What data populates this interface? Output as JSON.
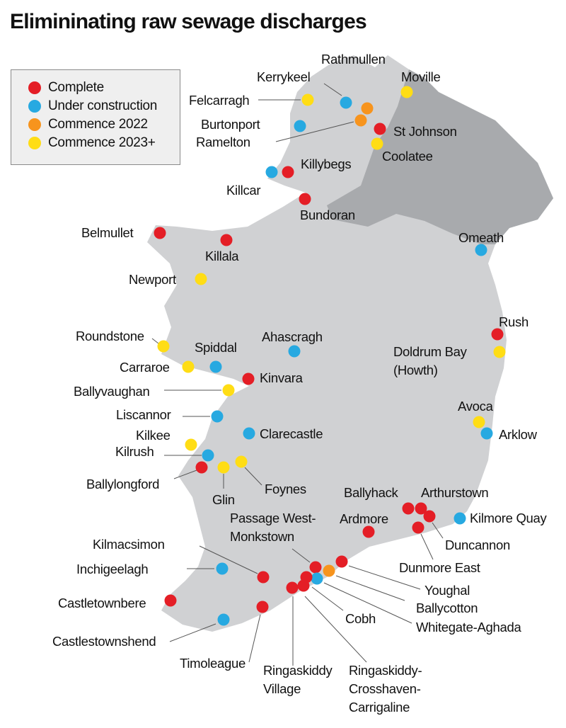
{
  "title": "Elimininating raw sewage discharges",
  "colors": {
    "land": "#d0d1d3",
    "northern_ireland": "#a8aaad",
    "leader": "#555555"
  },
  "legend": [
    {
      "label": "Complete",
      "color": "#e41e26"
    },
    {
      "label": "Under construction",
      "color": "#27a9e1"
    },
    {
      "label": "Commence 2022",
      "color": "#f7941d"
    },
    {
      "label": "Commence 2023+",
      "color": "#ffdd15"
    }
  ],
  "points": [
    {
      "lines": [
        "Rathmullen"
      ],
      "status": 2
    },
    {
      "lines": [
        "Kerrykeel"
      ],
      "status": 1
    },
    {
      "lines": [
        "Moville"
      ],
      "status": 3
    },
    {
      "lines": [
        "Felcarragh"
      ],
      "status": 3
    },
    {
      "lines": [
        "Burtonport"
      ],
      "status": 1
    },
    {
      "lines": [
        "Ramelton"
      ],
      "status": 2
    },
    {
      "lines": [
        "St Johnson"
      ],
      "status": 0
    },
    {
      "lines": [
        "Coolatee"
      ],
      "status": 3
    },
    {
      "lines": [
        "Killybegs"
      ],
      "status": 0
    },
    {
      "lines": [
        "Killcar"
      ],
      "status": 1
    },
    {
      "lines": [
        "Bundoran"
      ],
      "status": 0
    },
    {
      "lines": [
        "Belmullet"
      ],
      "status": 0
    },
    {
      "lines": [
        "Killala"
      ],
      "status": 0
    },
    {
      "lines": [
        "Omeath"
      ],
      "status": 1
    },
    {
      "lines": [
        "Newport"
      ],
      "status": 3
    },
    {
      "lines": [
        "Rush"
      ],
      "status": 0
    },
    {
      "lines": [
        "Doldrum Bay",
        "(Howth)"
      ],
      "status": 3
    },
    {
      "lines": [
        "Roundstone"
      ],
      "status": 3
    },
    {
      "lines": [
        "Ahascragh"
      ],
      "status": 1
    },
    {
      "lines": [
        "Spiddal"
      ],
      "status": 1
    },
    {
      "lines": [
        "Carraroe"
      ],
      "status": 3
    },
    {
      "lines": [
        "Kinvara"
      ],
      "status": 0
    },
    {
      "lines": [
        "Ballyvaughan"
      ],
      "status": 3
    },
    {
      "lines": [
        "Liscannor"
      ],
      "status": 1
    },
    {
      "lines": [
        "Avoca"
      ],
      "status": 3
    },
    {
      "lines": [
        "Arklow"
      ],
      "status": 1
    },
    {
      "lines": [
        "Clarecastle"
      ],
      "status": 1
    },
    {
      "lines": [
        "Kilkee"
      ],
      "status": 3
    },
    {
      "lines": [
        "Kilrush"
      ],
      "status": 1
    },
    {
      "lines": [
        "Ballylongford"
      ],
      "status": 0
    },
    {
      "lines": [
        "Glin"
      ],
      "status": 3
    },
    {
      "lines": [
        "Foynes"
      ],
      "status": 3
    },
    {
      "lines": [
        "Ballyhack"
      ],
      "status": 0
    },
    {
      "lines": [
        "Arthurstown"
      ],
      "status": 0
    },
    {
      "lines": [
        "Duncannon"
      ],
      "status": 0
    },
    {
      "lines": [
        "Dunmore East"
      ],
      "status": 0
    },
    {
      "lines": [
        "Kilmore Quay"
      ],
      "status": 1
    },
    {
      "lines": [
        "Ardmore"
      ],
      "status": 0
    },
    {
      "lines": [
        "Youghal"
      ],
      "status": 0
    },
    {
      "lines": [
        "Ballycotton"
      ],
      "status": 2
    },
    {
      "lines": [
        "Passage West-",
        "Monkstown"
      ],
      "status": 0
    },
    {
      "lines": [
        "Whitegate-Aghada"
      ],
      "status": 1
    },
    {
      "lines": [
        "Cobh"
      ],
      "status": 0
    },
    {
      "lines": [
        "Ringaskiddy-",
        "Crosshaven-",
        "Carrigaline"
      ],
      "status": 0
    },
    {
      "lines": [
        "Ringaskiddy",
        "Village"
      ],
      "status": 0
    },
    {
      "lines": [
        "Kilmacsimon"
      ],
      "status": 0
    },
    {
      "lines": [
        "Inchigeelagh"
      ],
      "status": 1
    },
    {
      "lines": [
        "Castletownbere"
      ],
      "status": 0
    },
    {
      "lines": [
        "Timoleague"
      ],
      "status": 0
    },
    {
      "lines": [
        "Castlestownshend"
      ],
      "status": 1
    }
  ]
}
